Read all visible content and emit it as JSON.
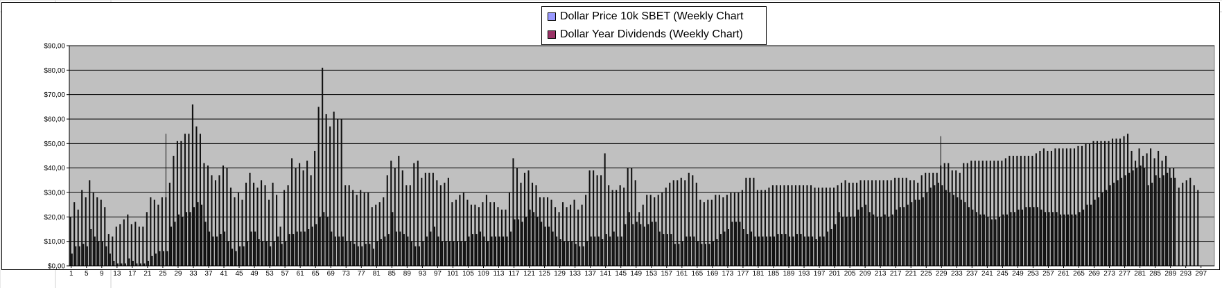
{
  "chart_data": {
    "type": "bar",
    "title": "",
    "xlabel": "",
    "ylabel": "",
    "ylim": [
      0,
      90
    ],
    "y_ticks": [
      "$0,00",
      "$10,00",
      "$20,00",
      "$30,00",
      "$40,00",
      "$50,00",
      "$60,00",
      "$70,00",
      "$80,00",
      "$90,00"
    ],
    "x_tick_labels": [
      "1",
      "5",
      "9",
      "13",
      "17",
      "21",
      "25",
      "29",
      "33",
      "37",
      "41",
      "45",
      "49",
      "53",
      "57",
      "61",
      "65",
      "69",
      "73",
      "77",
      "81",
      "85",
      "89",
      "93",
      "97",
      "101",
      "105",
      "109",
      "113",
      "117",
      "121",
      "125",
      "129",
      "133",
      "137",
      "141",
      "145",
      "149",
      "153",
      "157",
      "161",
      "165",
      "169",
      "173",
      "177",
      "181",
      "185",
      "189",
      "193",
      "197",
      "201",
      "205",
      "209",
      "213",
      "217",
      "221",
      "225",
      "229",
      "233",
      "237",
      "241",
      "245",
      "249",
      "253",
      "257",
      "261",
      "265",
      "269",
      "273",
      "277",
      "281",
      "285",
      "289",
      "293",
      "297"
    ],
    "x_range": [
      1,
      300
    ],
    "grid": true,
    "legend_position": "top-center",
    "plot_background": "#C0C0C0",
    "series": [
      {
        "name": "Dollar Price 10k SBET (Weekly Chart",
        "color": "#9999FF",
        "values": [
          20,
          26,
          23,
          31,
          28,
          35,
          30,
          28,
          27,
          24,
          13,
          12,
          16,
          17,
          19,
          21,
          17,
          18,
          16,
          16,
          22,
          28,
          27,
          25,
          28,
          28,
          34,
          45,
          51,
          51,
          54,
          54,
          66,
          57,
          54,
          42,
          41,
          37,
          35,
          37,
          41,
          40,
          32,
          28,
          30,
          27,
          34,
          38,
          34,
          32,
          35,
          33,
          27,
          34,
          29,
          16,
          31,
          33,
          44,
          40,
          42,
          39,
          43,
          37,
          47,
          65,
          81,
          62,
          57,
          63,
          60,
          60,
          33,
          33,
          31,
          29,
          31,
          30,
          30,
          24,
          25,
          26,
          28,
          37,
          43,
          40,
          45,
          39,
          33,
          33,
          42,
          43,
          36,
          38,
          38,
          38,
          35,
          33,
          34,
          36,
          26,
          27,
          29,
          30,
          27,
          25,
          25,
          24,
          26,
          29,
          26,
          26,
          24,
          23,
          23,
          30,
          44,
          40,
          34,
          38,
          39,
          34,
          33,
          28,
          28,
          28,
          27,
          24,
          22,
          26,
          24,
          25,
          27,
          23,
          25,
          29,
          39,
          39,
          37,
          37,
          46,
          33,
          31,
          31,
          33,
          32,
          40,
          40,
          35,
          22,
          25,
          29,
          29,
          28,
          29,
          30,
          32,
          34,
          35,
          35,
          36,
          35,
          38,
          37,
          34,
          27,
          26,
          27,
          27,
          29,
          29,
          28,
          29,
          30,
          30,
          30,
          31,
          36,
          36,
          36,
          31,
          31,
          31,
          32,
          33,
          33,
          33,
          33,
          33,
          33,
          33,
          33,
          33,
          33,
          33,
          32,
          32,
          32,
          32,
          32,
          32,
          33,
          34,
          35,
          34,
          34,
          34,
          35,
          35,
          35,
          35,
          35,
          35,
          35,
          35,
          35,
          36,
          36,
          36,
          36,
          35,
          35,
          34,
          37,
          38,
          38,
          38,
          38,
          41,
          42,
          42,
          39,
          39,
          38,
          42,
          42,
          43,
          43,
          43,
          43,
          43,
          43,
          43,
          43,
          43,
          44,
          45,
          45,
          45,
          45,
          45,
          45,
          45,
          46,
          47,
          48,
          47,
          47,
          48,
          48,
          48,
          48,
          48,
          48,
          49,
          49,
          50,
          50,
          51,
          51,
          51,
          51,
          51,
          52,
          52,
          52,
          53,
          54,
          47,
          43,
          48,
          45,
          46,
          48,
          44,
          47,
          43,
          45,
          40,
          40
        ],
        "spikes": {
          "26": 54,
          "229": 53
        }
      },
      {
        "name": "Dollar Year Dividends (Weekly Chart)",
        "color": "#993366",
        "values": [
          5,
          8,
          8,
          9,
          8,
          15,
          12,
          10,
          10,
          8,
          5,
          2,
          1,
          1,
          1,
          3,
          2,
          1,
          1,
          1,
          2,
          4,
          5,
          6,
          6,
          6,
          16,
          18,
          21,
          20,
          22,
          22,
          24,
          26,
          25,
          18,
          14,
          12,
          12,
          13,
          14,
          10,
          7,
          6,
          8,
          8,
          10,
          14,
          14,
          11,
          10,
          10,
          8,
          10,
          12,
          9,
          10,
          13,
          13,
          14,
          14,
          14,
          15,
          16,
          17,
          20,
          22,
          20,
          14,
          12,
          12,
          12,
          10,
          10,
          9,
          8,
          8,
          9,
          9,
          7,
          10,
          11,
          12,
          13,
          22,
          14,
          14,
          13,
          12,
          10,
          8,
          8,
          10,
          12,
          14,
          16,
          12,
          10,
          10,
          10,
          10,
          10,
          10,
          10,
          12,
          13,
          13,
          14,
          12,
          10,
          12,
          12,
          12,
          12,
          12,
          14,
          19,
          19,
          18,
          20,
          23,
          22,
          20,
          18,
          16,
          16,
          14,
          12,
          11,
          10,
          10,
          10,
          9,
          8,
          8,
          10,
          12,
          12,
          12,
          11,
          13,
          12,
          14,
          12,
          12,
          17,
          22,
          17,
          18,
          17,
          16,
          17,
          18,
          18,
          14,
          13,
          13,
          13,
          9,
          9,
          10,
          12,
          12,
          12,
          10,
          9,
          9,
          9,
          10,
          11,
          13,
          14,
          15,
          18,
          18,
          18,
          15,
          13,
          14,
          12,
          12,
          12,
          12,
          12,
          12,
          13,
          13,
          13,
          12,
          12,
          13,
          13,
          12,
          12,
          12,
          11,
          12,
          12,
          14,
          15,
          17,
          22,
          20,
          20,
          20,
          20,
          23,
          24,
          25,
          22,
          21,
          20,
          20,
          21,
          20,
          21,
          23,
          24,
          24,
          25,
          26,
          27,
          27,
          28,
          30,
          32,
          33,
          34,
          33,
          31,
          30,
          29,
          28,
          27,
          26,
          24,
          23,
          22,
          21,
          21,
          20,
          19,
          19,
          20,
          21,
          21,
          22,
          22,
          23,
          23,
          24,
          24,
          24,
          24,
          23,
          22,
          22,
          22,
          22,
          21,
          21,
          21,
          21,
          21,
          22,
          23,
          25,
          25,
          27,
          28,
          30,
          31,
          33,
          34,
          35,
          36,
          37,
          38,
          39,
          40,
          41,
          40,
          33,
          34,
          37,
          36,
          37,
          38,
          36,
          36,
          32,
          34,
          35,
          36,
          33,
          31
        ]
      }
    ]
  }
}
